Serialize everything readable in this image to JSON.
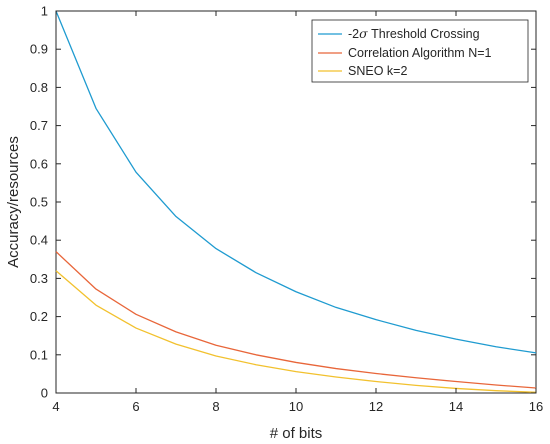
{
  "chart_data": {
    "type": "line",
    "title": "",
    "xlabel": "# of bits",
    "ylabel": "Accuracy/resources",
    "xlim": [
      4,
      16
    ],
    "ylim": [
      0,
      1
    ],
    "xticks": [
      4,
      6,
      8,
      10,
      12,
      14,
      16
    ],
    "yticks": [
      0,
      0.1,
      0.2,
      0.3,
      0.4,
      0.5,
      0.6,
      0.7,
      0.8,
      0.9,
      1
    ],
    "ytick_labels": [
      "0",
      "0.1",
      "0.2",
      "0.3",
      "0.4",
      "0.5",
      "0.6",
      "0.7",
      "0.8",
      "0.9",
      "1"
    ],
    "grid": false,
    "legend_position": "top-right",
    "x": [
      4,
      5,
      6,
      7,
      8,
      9,
      10,
      11,
      12,
      13,
      14,
      15,
      16
    ],
    "series": [
      {
        "name": "-2σ Threshold Crossing",
        "legend_prefix": "-2",
        "legend_symbol": "σ",
        "legend_suffix": " Threshold Crossing",
        "color": "#1f9bd0",
        "values": [
          1.0,
          0.745,
          0.578,
          0.462,
          0.378,
          0.315,
          0.265,
          0.224,
          0.192,
          0.164,
          0.141,
          0.121,
          0.105
        ]
      },
      {
        "name": "Correlation Algorithm N=1",
        "color": "#e8663a",
        "values": [
          0.37,
          0.272,
          0.206,
          0.16,
          0.125,
          0.1,
          0.08,
          0.064,
          0.051,
          0.04,
          0.03,
          0.021,
          0.013
        ]
      },
      {
        "name": "SNEO k=2",
        "color": "#f2c12e",
        "values": [
          0.32,
          0.23,
          0.17,
          0.128,
          0.097,
          0.074,
          0.056,
          0.042,
          0.03,
          0.02,
          0.012,
          0.006,
          0.002
        ]
      }
    ]
  }
}
